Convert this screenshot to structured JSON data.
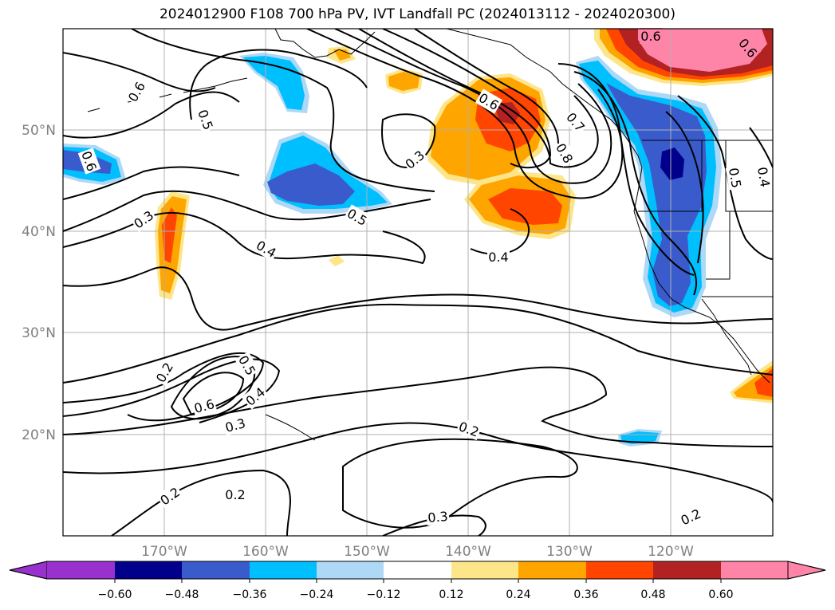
{
  "title": "2024012900 F108 700 hPa PV, IVT Landfall PC (2024013112 - 2024020300)",
  "map": {
    "projection": "cylindrical",
    "lon_range": [
      -180,
      -110
    ],
    "lat_range": [
      10,
      60
    ],
    "lat_ticks": [
      "50°N",
      "40°N",
      "30°N",
      "20°N"
    ],
    "lon_ticks": [
      "170°W",
      "160°W",
      "150°W",
      "140°W",
      "130°W",
      "120°W"
    ],
    "grid": true,
    "contour_labels": [
      {
        "text": "0.6",
        "rot": -60
      },
      {
        "text": "0.5",
        "rot": 70
      },
      {
        "text": "0.6",
        "rot": 70
      },
      {
        "text": "0.3",
        "rot": -35
      },
      {
        "text": "0.4",
        "rot": 30
      },
      {
        "text": "0.5",
        "rot": 30
      },
      {
        "text": "0.3",
        "rot": -40
      },
      {
        "text": "0.6",
        "rot": 30
      },
      {
        "text": "0.4",
        "rot": 0
      },
      {
        "text": "0.6",
        "rot": 0
      },
      {
        "text": "0.6",
        "rot": 50
      },
      {
        "text": "0.7",
        "rot": 50
      },
      {
        "text": "0.8",
        "rot": 60
      },
      {
        "text": "0.2",
        "rot": -60
      },
      {
        "text": "0.5",
        "rot": 60
      },
      {
        "text": "0.6",
        "rot": -15
      },
      {
        "text": "0.4",
        "rot": -40
      },
      {
        "text": "0.3",
        "rot": -15
      },
      {
        "text": "0.2",
        "rot": 20
      },
      {
        "text": "0.2",
        "rot": -35
      },
      {
        "text": "0.2",
        "rot": 0
      },
      {
        "text": "0.3",
        "rot": -5
      },
      {
        "text": "0.2",
        "rot": -25
      },
      {
        "text": "0.5",
        "rot": 80
      },
      {
        "text": "0.4",
        "rot": 80
      }
    ]
  },
  "colorbar": {
    "levels": [
      "−0.60",
      "−0.48",
      "−0.36",
      "−0.24",
      "−0.12",
      "0.12",
      "0.24",
      "0.36",
      "0.48",
      "0.60"
    ],
    "colors": {
      "below": "#9932cc",
      "n060_n048": "#00008b",
      "n048_n036": "#3a5bcc",
      "n036_n024": "#00bfff",
      "n024_n012": "#add8f6",
      "n012_p012": "#ffffff",
      "p012_p024": "#fde68a",
      "p024_p036": "#ffa500",
      "p036_p048": "#ff4500",
      "p048_p060": "#b22222",
      "above": "#ff85a8"
    }
  }
}
